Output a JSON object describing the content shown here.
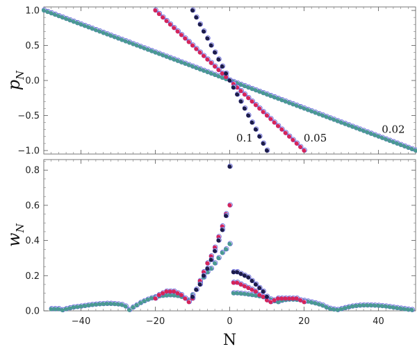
{
  "chart_data": [
    {
      "type": "scatter",
      "panel": "top",
      "ylabel": "p",
      "ylabel_sub": "N",
      "xlim": [
        -50,
        50
      ],
      "ylim": [
        -1.05,
        1.05
      ],
      "x_ticks": [
        -40,
        -20,
        0,
        20,
        40
      ],
      "y_ticks": [
        -1.0,
        -0.5,
        0.0,
        0.5,
        1.0
      ],
      "y_tick_labels": [
        "−1.0",
        "−0.5",
        "0.0",
        "0.5",
        "1.0"
      ],
      "annotations": [
        {
          "text": "0.1",
          "x": 4,
          "y": -0.87
        },
        {
          "text": "0.05",
          "x": 23,
          "y": -0.87
        },
        {
          "text": "0.02",
          "x": 44,
          "y": -0.75
        }
      ],
      "series": [
        {
          "group": "0.1",
          "N_range": [
            -10,
            10
          ],
          "p_start": 1.0,
          "p_end": -1.0,
          "fill": "#1c1c4a"
        },
        {
          "group": "0.05",
          "N_range": [
            -20,
            20
          ],
          "p_start": 1.0,
          "p_end": -1.0,
          "fill": "#d6245a"
        },
        {
          "group": "0.02",
          "N_range": [
            -50,
            50
          ],
          "p_start": 1.0,
          "p_end": -1.0,
          "fill": "#4a9a92"
        }
      ]
    },
    {
      "type": "scatter",
      "panel": "bottom",
      "xlabel": "N",
      "ylabel": "w",
      "ylabel_sub": "N",
      "xlim": [
        -50,
        50
      ],
      "ylim": [
        0,
        0.86
      ],
      "x_ticks": [
        -40,
        -20,
        0,
        20,
        40
      ],
      "x_tick_labels": [
        "−40",
        "−20",
        "0",
        "20",
        "40"
      ],
      "y_ticks": [
        0.0,
        0.2,
        0.4,
        0.6,
        0.8
      ],
      "y_tick_labels": [
        "0.0",
        "0.2",
        "0.4",
        "0.6",
        "0.8"
      ],
      "series": [
        {
          "group": "0.1",
          "fill": "#1c1c4a",
          "points": [
            [
              -10,
              0.08
            ],
            [
              -9,
              0.12
            ],
            [
              -8,
              0.15
            ],
            [
              -7,
              0.2
            ],
            [
              -6,
              0.24
            ],
            [
              -5,
              0.29
            ],
            [
              -4,
              0.34
            ],
            [
              -3,
              0.4
            ],
            [
              -2,
              0.46
            ],
            [
              -1,
              0.54
            ],
            [
              0,
              0.82
            ],
            [
              1,
              0.22
            ],
            [
              2,
              0.22
            ],
            [
              3,
              0.21
            ],
            [
              4,
              0.2
            ],
            [
              5,
              0.19
            ],
            [
              6,
              0.17
            ],
            [
              7,
              0.15
            ],
            [
              8,
              0.13
            ],
            [
              9,
              0.11
            ],
            [
              10,
              0.08
            ]
          ]
        },
        {
          "group": "0.05",
          "fill": "#d6245a",
          "points": [
            [
              -20,
              0.07
            ],
            [
              -19,
              0.09
            ],
            [
              -18,
              0.1
            ],
            [
              -17,
              0.11
            ],
            [
              -16,
              0.11
            ],
            [
              -15,
              0.11
            ],
            [
              -14,
              0.1
            ],
            [
              -13,
              0.09
            ],
            [
              -12,
              0.07
            ],
            [
              -11,
              0.05
            ],
            [
              -10,
              0.07
            ],
            [
              -9,
              0.12
            ],
            [
              -8,
              0.17
            ],
            [
              -7,
              0.22
            ],
            [
              -6,
              0.27
            ],
            [
              -5,
              0.31
            ],
            [
              -4,
              0.36
            ],
            [
              -3,
              0.42
            ],
            [
              -2,
              0.48
            ],
            [
              -1,
              0.55
            ],
            [
              0,
              0.6
            ],
            [
              1,
              0.16
            ],
            [
              2,
              0.16
            ],
            [
              3,
              0.15
            ],
            [
              4,
              0.14
            ],
            [
              5,
              0.13
            ],
            [
              6,
              0.12
            ],
            [
              7,
              0.11
            ],
            [
              8,
              0.09
            ],
            [
              9,
              0.08
            ],
            [
              10,
              0.06
            ],
            [
              11,
              0.05
            ],
            [
              12,
              0.06
            ],
            [
              13,
              0.07
            ],
            [
              14,
              0.07
            ],
            [
              15,
              0.07
            ],
            [
              16,
              0.07
            ],
            [
              17,
              0.07
            ],
            [
              18,
              0.07
            ],
            [
              19,
              0.06
            ],
            [
              20,
              0.05
            ]
          ]
        },
        {
          "group": "0.02",
          "fill": "#4a9a92",
          "points": [
            [
              -48,
              0.01
            ],
            [
              -47,
              0.01
            ],
            [
              -46,
              0.01
            ],
            [
              -45,
              0.004
            ],
            [
              -44,
              0.01
            ],
            [
              -43,
              0.015
            ],
            [
              -42,
              0.02
            ],
            [
              -41,
              0.022
            ],
            [
              -40,
              0.025
            ],
            [
              -39,
              0.028
            ],
            [
              -38,
              0.031
            ],
            [
              -37,
              0.034
            ],
            [
              -36,
              0.036
            ],
            [
              -35,
              0.038
            ],
            [
              -34,
              0.039
            ],
            [
              -33,
              0.04
            ],
            [
              -32,
              0.04
            ],
            [
              -31,
              0.039
            ],
            [
              -30,
              0.037
            ],
            [
              -29,
              0.034
            ],
            [
              -28,
              0.025
            ],
            [
              -27,
              0.005
            ],
            [
              -26,
              0.02
            ],
            [
              -25,
              0.032
            ],
            [
              -24,
              0.045
            ],
            [
              -23,
              0.055
            ],
            [
              -22,
              0.064
            ],
            [
              -21,
              0.072
            ],
            [
              -20,
              0.078
            ],
            [
              -19,
              0.083
            ],
            [
              -18,
              0.086
            ],
            [
              -17,
              0.088
            ],
            [
              -16,
              0.089
            ],
            [
              -15,
              0.088
            ],
            [
              -14,
              0.085
            ],
            [
              -13,
              0.08
            ],
            [
              -12,
              0.07
            ],
            [
              -11,
              0.06
            ],
            [
              -10,
              0.09
            ],
            [
              -9,
              0.12
            ],
            [
              -8,
              0.16
            ],
            [
              -7,
              0.19
            ],
            [
              -6,
              0.22
            ],
            [
              -5,
              0.24
            ],
            [
              -4,
              0.27
            ],
            [
              -3,
              0.3
            ],
            [
              -2,
              0.33
            ],
            [
              -1,
              0.35
            ],
            [
              0,
              0.38
            ],
            [
              1,
              0.1
            ],
            [
              2,
              0.1
            ],
            [
              3,
              0.098
            ],
            [
              4,
              0.096
            ],
            [
              5,
              0.093
            ],
            [
              6,
              0.09
            ],
            [
              7,
              0.087
            ],
            [
              8,
              0.083
            ],
            [
              9,
              0.078
            ],
            [
              10,
              0.072
            ],
            [
              11,
              0.065
            ],
            [
              12,
              0.055
            ],
            [
              13,
              0.05
            ],
            [
              14,
              0.058
            ],
            [
              15,
              0.062
            ],
            [
              16,
              0.064
            ],
            [
              17,
              0.064
            ],
            [
              18,
              0.063
            ],
            [
              19,
              0.06
            ],
            [
              20,
              0.057
            ],
            [
              21,
              0.053
            ],
            [
              22,
              0.048
            ],
            [
              23,
              0.043
            ],
            [
              24,
              0.037
            ],
            [
              25,
              0.03
            ],
            [
              26,
              0.02
            ],
            [
              27,
              0.012
            ],
            [
              28,
              0.008
            ],
            [
              29,
              0.005
            ],
            [
              30,
              0.01
            ],
            [
              31,
              0.016
            ],
            [
              32,
              0.021
            ],
            [
              33,
              0.025
            ],
            [
              34,
              0.028
            ],
            [
              35,
              0.03
            ],
            [
              36,
              0.031
            ],
            [
              37,
              0.031
            ],
            [
              38,
              0.031
            ],
            [
              39,
              0.03
            ],
            [
              40,
              0.029
            ],
            [
              41,
              0.027
            ],
            [
              42,
              0.025
            ],
            [
              43,
              0.022
            ],
            [
              44,
              0.019
            ],
            [
              45,
              0.016
            ],
            [
              46,
              0.013
            ],
            [
              47,
              0.01
            ],
            [
              48,
              0.007
            ],
            [
              49,
              0.005
            ]
          ]
        }
      ]
    }
  ]
}
